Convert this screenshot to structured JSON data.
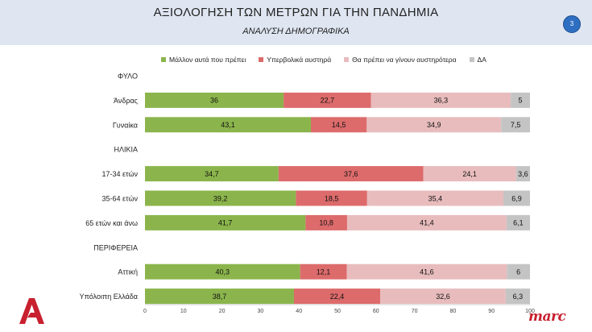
{
  "header": {
    "title": "ΑΞΙΟΛΟΓΗΣΗ ΤΩΝ ΜΕΤΡΩΝ ΓΙΑ ΤΗΝ ΠΑΝΔΗΜΙΑ",
    "subtitle": "ΑΝΑΛΥΣΗ ΔΗΜΟΓΡΑΦΙΚΑ",
    "page_number": "3"
  },
  "branding": {
    "left_logo_icon": "alpha-logo-icon",
    "right_logo_text": "marc"
  },
  "colors": {
    "header_bg": "#dfe6f1",
    "badge": "#2e6fc2",
    "logo_red": "#c8202f"
  },
  "chart_data": {
    "type": "bar",
    "orientation": "horizontal",
    "stacked": true,
    "legend_position": "top",
    "grid": false,
    "xlim": [
      0,
      100
    ],
    "x_ticks": [
      0,
      10,
      20,
      30,
      40,
      50,
      60,
      70,
      80,
      90,
      100
    ],
    "rows": [
      {
        "label": "ΦΥΛΟ",
        "header": true
      },
      {
        "label": "Άνδρας",
        "values": [
          36,
          22.7,
          36.3,
          5
        ]
      },
      {
        "label": "Γυναίκα",
        "values": [
          43.1,
          14.5,
          34.9,
          7.5
        ]
      },
      {
        "label": "ΗΛΙΚΙΑ",
        "header": true
      },
      {
        "label": "17-34 ετών",
        "values": [
          34.7,
          37.6,
          24.1,
          3.6
        ]
      },
      {
        "label": "35-64 ετών",
        "values": [
          39.2,
          18.5,
          35.4,
          6.9
        ]
      },
      {
        "label": "65 ετών και άνω",
        "values": [
          41.7,
          10.8,
          41.4,
          6.1
        ]
      },
      {
        "label": "ΠΕΡΙΦΕΡΕΙΑ",
        "header": true
      },
      {
        "label": "Αττική",
        "values": [
          40.3,
          12.1,
          41.6,
          6
        ]
      },
      {
        "label": "Υπόλοιπη Ελλάδα",
        "values": [
          38.7,
          22.4,
          32.6,
          6.3
        ]
      }
    ],
    "series": [
      {
        "name": "Μάλλον αυτά που πρέπει",
        "color": "#8bb54c"
      },
      {
        "name": "Υπερβολικά αυστηρά",
        "color": "#dd6b6b"
      },
      {
        "name": "Θα πρέπει να γίνουν αυστηρότερα",
        "color": "#e8bcbd"
      },
      {
        "name": "ΔΑ",
        "color": "#c4c4c4"
      }
    ]
  }
}
